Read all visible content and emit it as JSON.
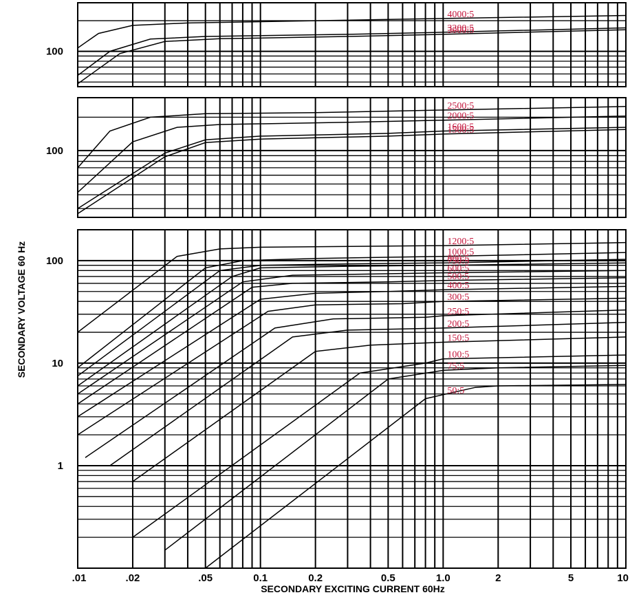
{
  "chart_data": {
    "type": "line",
    "scale": "log-log",
    "grid": true,
    "xlabel": "SECONDARY  EXCITING  CURRENT  60Hz",
    "ylabel": "SECONDARY VOLTAGE 60 Hz",
    "xlim": [
      0.01,
      10
    ],
    "x_tick_labels": [
      ".01",
      ".02",
      ".05",
      "0.1",
      "0.2",
      "0.5",
      "1.0",
      "2",
      "5",
      "10"
    ],
    "x_tick_values": [
      0.01,
      0.02,
      0.05,
      0.1,
      0.2,
      0.5,
      1.0,
      2,
      5,
      10
    ],
    "panels": [
      {
        "name": "top",
        "ylim": [
          45,
          300
        ],
        "y_tick_labels": [
          "100"
        ],
        "y_tick_values": [
          100
        ],
        "series": [
          {
            "name": "4000:5",
            "points": [
              [
                0.01,
                108
              ],
              [
                0.013,
                150
              ],
              [
                0.02,
                180
              ],
              [
                0.04,
                190
              ],
              [
                0.2,
                200
              ],
              [
                1,
                210
              ],
              [
                10,
                225
              ]
            ]
          },
          {
            "name": "3200:5",
            "points": [
              [
                0.01,
                58
              ],
              [
                0.015,
                100
              ],
              [
                0.025,
                132
              ],
              [
                0.05,
                140
              ],
              [
                0.3,
                147
              ],
              [
                1,
                154
              ],
              [
                10,
                170
              ]
            ]
          },
          {
            "name": "3000:5",
            "points": [
              [
                0.01,
                48
              ],
              [
                0.017,
                95
              ],
              [
                0.03,
                125
              ],
              [
                0.06,
                133
              ],
              [
                0.3,
                140
              ],
              [
                1,
                147
              ],
              [
                10,
                163
              ]
            ]
          }
        ]
      },
      {
        "name": "middle",
        "ylim": [
          25,
          300
        ],
        "y_tick_labels": [
          "100"
        ],
        "y_tick_values": [
          100
        ],
        "series": [
          {
            "name": "2500:5",
            "points": [
              [
                0.01,
                70
              ],
              [
                0.015,
                150
              ],
              [
                0.025,
                200
              ],
              [
                0.05,
                215
              ],
              [
                0.2,
                220
              ],
              [
                1,
                232
              ],
              [
                10,
                250
              ]
            ]
          },
          {
            "name": "2000:5",
            "points": [
              [
                0.01,
                42
              ],
              [
                0.02,
                120
              ],
              [
                0.035,
                162
              ],
              [
                0.06,
                172
              ],
              [
                0.3,
                180
              ],
              [
                1,
                188
              ],
              [
                10,
                205
              ]
            ]
          },
          {
            "name": "1600:5",
            "points": [
              [
                0.01,
                30
              ],
              [
                0.03,
                95
              ],
              [
                0.05,
                125
              ],
              [
                0.1,
                135
              ],
              [
                0.5,
                143
              ],
              [
                1,
                150
              ],
              [
                10,
                162
              ]
            ]
          },
          {
            "name": "1500:5",
            "points": [
              [
                0.01,
                27
              ],
              [
                0.03,
                88
              ],
              [
                0.05,
                118
              ],
              [
                0.1,
                127
              ],
              [
                0.5,
                135
              ],
              [
                1,
                141
              ],
              [
                10,
                155
              ]
            ]
          }
        ]
      },
      {
        "name": "bottom",
        "ylim": [
          0.1,
          200
        ],
        "y_tick_labels": [
          "100",
          "10",
          "1"
        ],
        "y_tick_values": [
          100,
          10,
          1
        ],
        "series": [
          {
            "name": "1200:5",
            "points": [
              [
                0.01,
                20
              ],
              [
                0.035,
                110
              ],
              [
                0.06,
                130
              ],
              [
                0.1,
                135
              ],
              [
                1,
                140
              ],
              [
                10,
                150
              ]
            ]
          },
          {
            "name": "1000:5",
            "points": [
              [
                0.01,
                9
              ],
              [
                0.05,
                85
              ],
              [
                0.08,
                100
              ],
              [
                0.2,
                105
              ],
              [
                1,
                110
              ],
              [
                10,
                120
              ]
            ]
          },
          {
            "name": "800:5",
            "points": [
              [
                0.01,
                7.5
              ],
              [
                0.06,
                80
              ],
              [
                0.1,
                90
              ],
              [
                0.3,
                93
              ],
              [
                1,
                95
              ],
              [
                10,
                103
              ]
            ]
          },
          {
            "name": "750:5",
            "points": [
              [
                0.01,
                6
              ],
              [
                0.07,
                70
              ],
              [
                0.1,
                85
              ],
              [
                0.3,
                88
              ],
              [
                1,
                90
              ],
              [
                10,
                95
              ]
            ]
          },
          {
            "name": "600:5",
            "points": [
              [
                0.01,
                5
              ],
              [
                0.08,
                62
              ],
              [
                0.15,
                72
              ],
              [
                0.4,
                74
              ],
              [
                1,
                76
              ],
              [
                10,
                80
              ]
            ]
          },
          {
            "name": "500:5",
            "points": [
              [
                0.01,
                4
              ],
              [
                0.09,
                55
              ],
              [
                0.15,
                60
              ],
              [
                0.5,
                62
              ],
              [
                1,
                64
              ],
              [
                10,
                68
              ]
            ]
          },
          {
            "name": "400:5",
            "points": [
              [
                0.01,
                3
              ],
              [
                0.1,
                42
              ],
              [
                0.2,
                48
              ],
              [
                0.5,
                50
              ],
              [
                1,
                52
              ],
              [
                10,
                56
              ]
            ]
          },
          {
            "name": "300:5",
            "points": [
              [
                0.01,
                2
              ],
              [
                0.11,
                32
              ],
              [
                0.2,
                37
              ],
              [
                0.6,
                38
              ],
              [
                1,
                40
              ],
              [
                10,
                43
              ]
            ]
          },
          {
            "name": "250:5",
            "points": [
              [
                0.011,
                1.2
              ],
              [
                0.12,
                22
              ],
              [
                0.25,
                27
              ],
              [
                0.8,
                28
              ],
              [
                1,
                29
              ],
              [
                10,
                33
              ]
            ]
          },
          {
            "name": "200:5",
            "points": [
              [
                0.015,
                1
              ],
              [
                0.15,
                18
              ],
              [
                0.3,
                21
              ],
              [
                1,
                22
              ],
              [
                10,
                25
              ]
            ]
          },
          {
            "name": "150:5",
            "points": [
              [
                0.02,
                0.7
              ],
              [
                0.2,
                13
              ],
              [
                0.4,
                15
              ],
              [
                1,
                16
              ],
              [
                10,
                18
              ]
            ]
          },
          {
            "name": "100:5",
            "points": [
              [
                0.02,
                0.2
              ],
              [
                0.35,
                8
              ],
              [
                0.8,
                10
              ],
              [
                1,
                11
              ],
              [
                10,
                12
              ]
            ]
          },
          {
            "name": "75:5",
            "points": [
              [
                0.03,
                0.15
              ],
              [
                0.5,
                7
              ],
              [
                1,
                8.5
              ],
              [
                2,
                9
              ],
              [
                10,
                9.5
              ]
            ]
          },
          {
            "name": "50:5",
            "points": [
              [
                0.05,
                0.1
              ],
              [
                0.8,
                4.5
              ],
              [
                1.5,
                5.8
              ],
              [
                2,
                6
              ],
              [
                10,
                6.2
              ]
            ]
          }
        ]
      }
    ]
  }
}
